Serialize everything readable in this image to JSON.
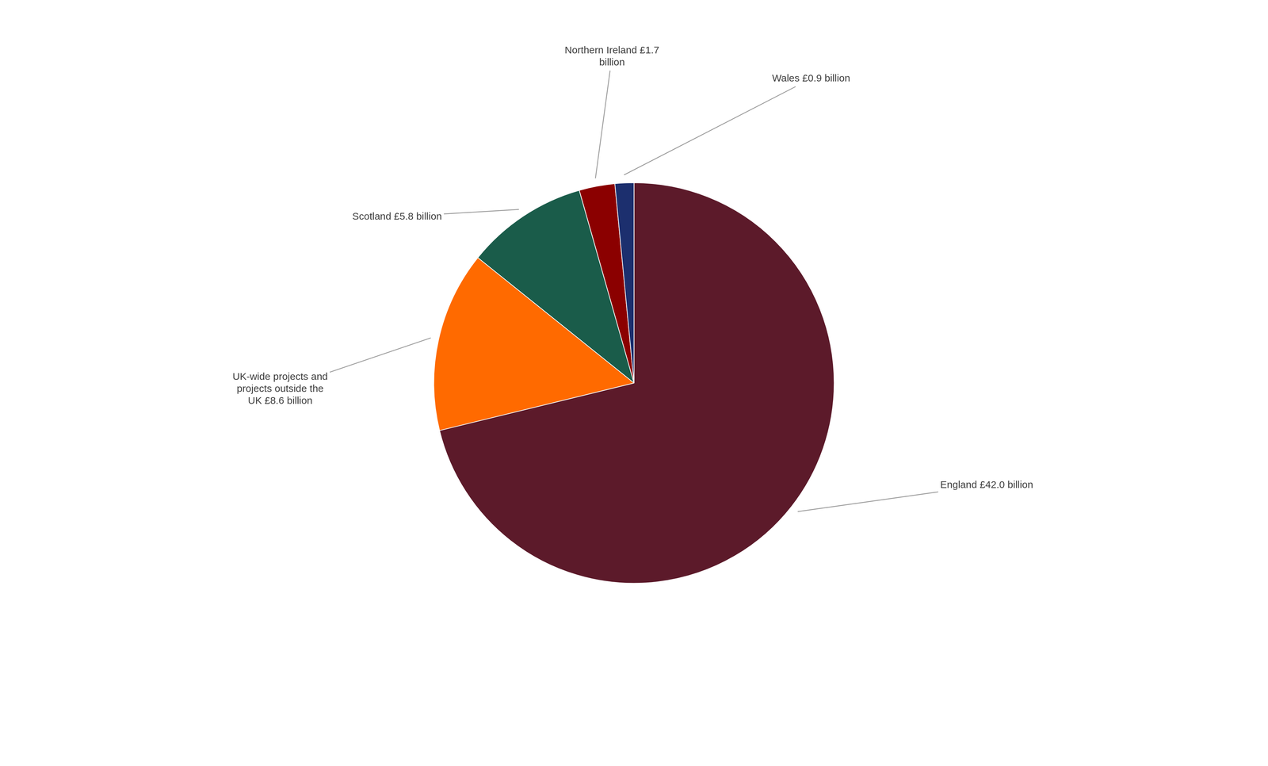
{
  "chart_data": {
    "type": "pie",
    "categories": [
      "England £42.0 billion",
      "UK-wide projects and\nprojects outside the\nUK £8.6 billion",
      "Scotland £5.8 billion",
      "Northern Ireland £1.7\nbillion",
      "Wales £0.9 billion"
    ],
    "values": [
      42.0,
      8.6,
      5.8,
      1.7,
      0.9
    ],
    "colors": [
      "#5C1A2A",
      "#FF6A00",
      "#1A5C4A",
      "#8B0000",
      "#1C2F6E"
    ]
  }
}
